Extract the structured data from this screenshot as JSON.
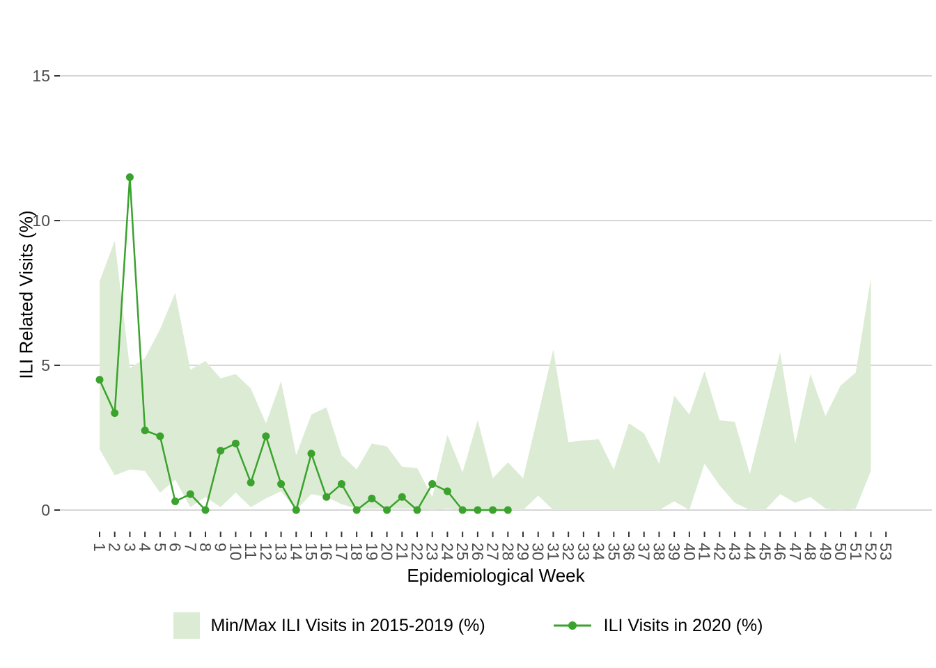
{
  "colors": {
    "background": "#ffffff",
    "band_fill": "#dcecd4",
    "line_green": "#3aa22d",
    "gridline": "#d6d6d6",
    "tick_mark": "#333333",
    "tick_text": "#4d4d4d",
    "axis_title_text": "#000000"
  },
  "y_axis": {
    "title": "ILI Related Visits (%)",
    "tick_labels": [
      "0",
      "5",
      "10",
      "15"
    ],
    "tick_values": [
      0,
      5,
      10,
      15
    ]
  },
  "x_axis": {
    "title": "Epidemiological Week",
    "tick_labels": [
      "1",
      "2",
      "3",
      "4",
      "5",
      "6",
      "7",
      "8",
      "9",
      "10",
      "11",
      "12",
      "13",
      "14",
      "15",
      "16",
      "17",
      "18",
      "19",
      "20",
      "21",
      "22",
      "23",
      "24",
      "25",
      "26",
      "27",
      "28",
      "29",
      "30",
      "31",
      "32",
      "33",
      "34",
      "35",
      "36",
      "37",
      "38",
      "39",
      "40",
      "41",
      "42",
      "43",
      "44",
      "45",
      "46",
      "47",
      "48",
      "49",
      "50",
      "51",
      "52",
      "53"
    ]
  },
  "legend": {
    "items": [
      {
        "label": "Min/Max ILI Visits in 2015-2019 (%)",
        "key": "band"
      },
      {
        "label": "ILI Visits in 2020 (%)",
        "key": "line"
      }
    ]
  },
  "chart_data": {
    "type": "area",
    "title": "",
    "xlabel": "Epidemiological Week",
    "ylabel": "ILI Related Visits (%)",
    "xlim": [
      1,
      53
    ],
    "ylim": [
      0,
      15
    ],
    "y_gridlines": [
      0,
      5,
      10,
      15
    ],
    "grid": "horizontal-major-only",
    "legend_position": "bottom",
    "series": [
      {
        "name": "Min/Max ILI Visits in 2015-2019 (%)",
        "type": "min-max-band",
        "color": "#dcecd4",
        "weeks": [
          1,
          2,
          3,
          4,
          5,
          6,
          7,
          8,
          9,
          10,
          11,
          12,
          13,
          14,
          15,
          16,
          17,
          18,
          19,
          20,
          21,
          22,
          23,
          24,
          25,
          26,
          27,
          28,
          29,
          30,
          31,
          32,
          33,
          34,
          35,
          36,
          37,
          38,
          39,
          40,
          41,
          42,
          43,
          44,
          45,
          46,
          47,
          48,
          49,
          50,
          51,
          52
        ],
        "max": [
          7.9,
          9.3,
          4.9,
          5.25,
          6.25,
          7.5,
          4.85,
          5.15,
          4.55,
          4.7,
          4.2,
          3.0,
          4.45,
          1.9,
          3.3,
          3.55,
          1.9,
          1.4,
          2.3,
          2.2,
          1.5,
          1.45,
          0.45,
          2.6,
          1.3,
          3.1,
          1.1,
          1.65,
          1.1,
          3.3,
          5.55,
          2.35,
          2.4,
          2.45,
          1.4,
          3.0,
          2.65,
          1.6,
          3.95,
          3.3,
          4.8,
          3.1,
          3.05,
          1.25,
          3.35,
          5.45,
          2.3,
          4.7,
          3.25,
          4.3,
          4.75,
          8.0
        ],
        "min": [
          2.1,
          1.2,
          1.4,
          1.35,
          0.6,
          1.05,
          0.1,
          0.45,
          0.1,
          0.6,
          0.1,
          0.4,
          0.65,
          0.0,
          0.55,
          0.45,
          0.2,
          0.05,
          0.05,
          0.05,
          0.05,
          0.05,
          0.0,
          0.05,
          0.0,
          0.05,
          0.0,
          0.0,
          0.0,
          0.5,
          0.0,
          0.0,
          0.0,
          0.0,
          0.0,
          0.0,
          0.0,
          0.0,
          0.3,
          0.0,
          1.6,
          0.85,
          0.25,
          0.0,
          0.0,
          0.55,
          0.25,
          0.45,
          0.05,
          0.0,
          0.05,
          1.35
        ]
      },
      {
        "name": "ILI Visits in 2020 (%)",
        "type": "line-with-markers",
        "color": "#3aa22d",
        "weeks": [
          1,
          2,
          3,
          4,
          5,
          6,
          7,
          8,
          9,
          10,
          11,
          12,
          13,
          14,
          15,
          16,
          17,
          18,
          19,
          20,
          21,
          22,
          23,
          24,
          25,
          26,
          27,
          28
        ],
        "values": [
          4.5,
          3.35,
          11.5,
          2.75,
          2.55,
          0.3,
          0.55,
          0.0,
          2.05,
          2.3,
          0.95,
          2.55,
          0.9,
          0.0,
          1.95,
          0.45,
          0.9,
          0.0,
          0.4,
          0.0,
          0.45,
          0.0,
          0.9,
          0.65,
          0.0,
          0.0,
          0.0,
          0.0
        ]
      }
    ]
  }
}
